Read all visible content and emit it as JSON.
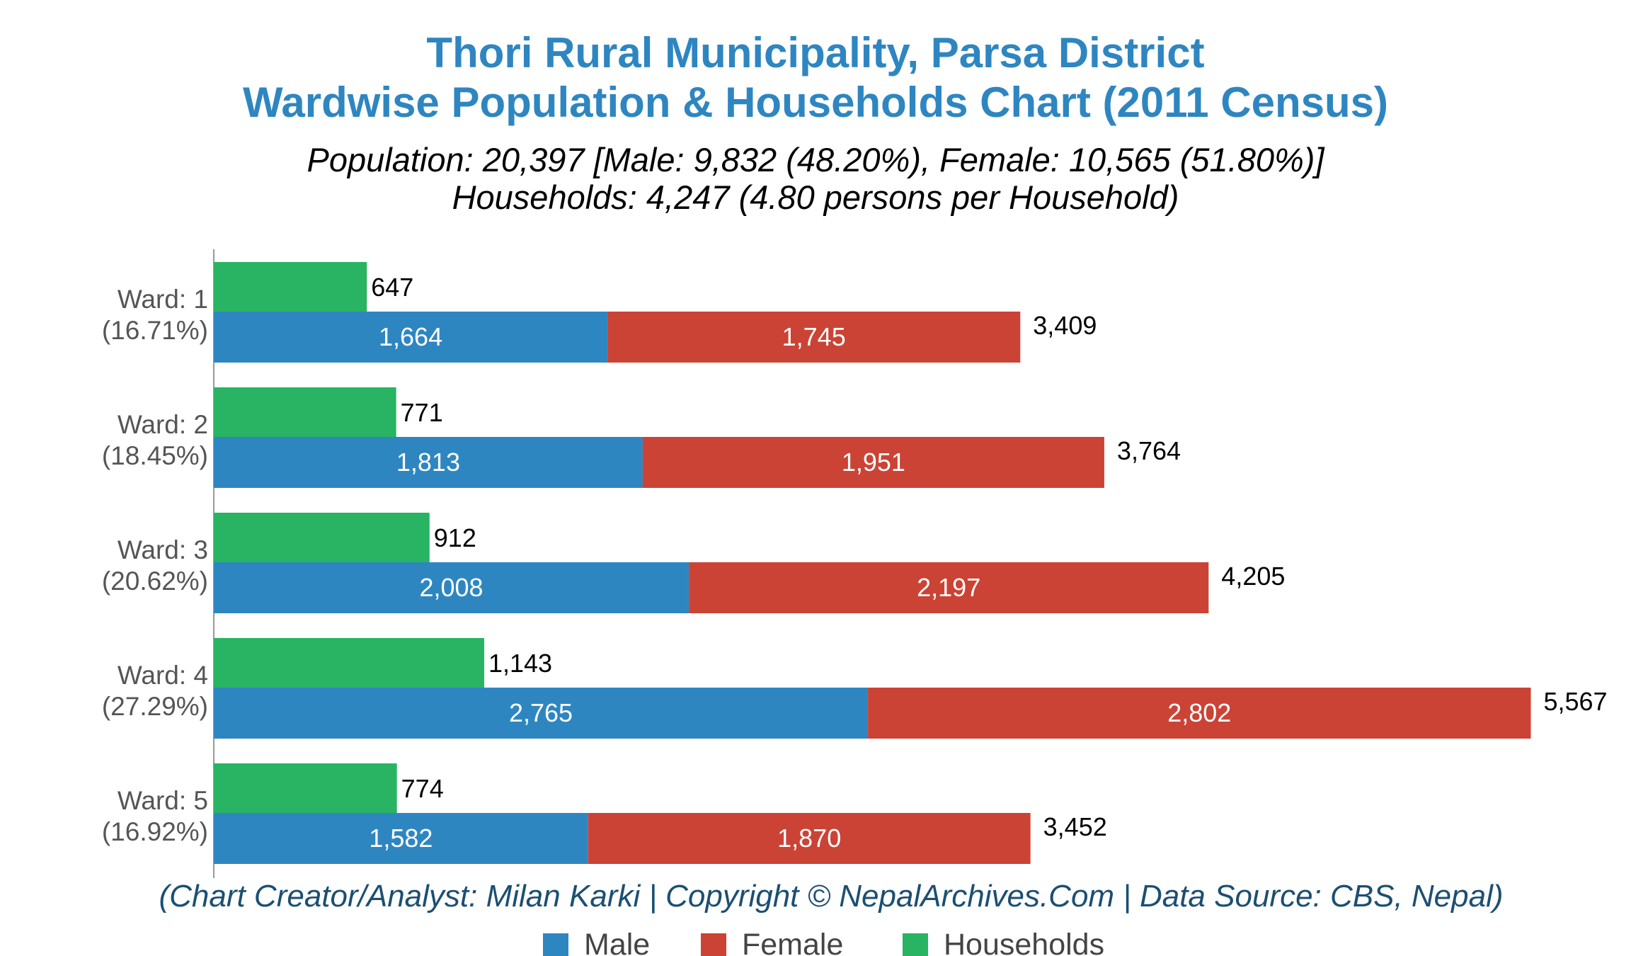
{
  "chart_data": {
    "type": "bar",
    "orientation": "horizontal",
    "title": [
      "Thori Rural Municipality, Parsa District",
      "Wardwise Population & Households Chart (2011 Census)"
    ],
    "subtitle": [
      "Population: 20,397 [Male: 9,832 (48.20%), Female: 10,565 (51.80%)]",
      "Households: 4,247 (4.80 persons per Household)"
    ],
    "categories": [
      {
        "name": "Ward: 1",
        "share": "(16.71%)"
      },
      {
        "name": "Ward: 2",
        "share": "(18.45%)"
      },
      {
        "name": "Ward: 3",
        "share": "(20.62%)"
      },
      {
        "name": "Ward: 4",
        "share": "(27.29%)"
      },
      {
        "name": "Ward: 5",
        "share": "(16.92%)"
      }
    ],
    "series": [
      {
        "name": "Male",
        "stack": "population",
        "color": "#2e86c1",
        "values": [
          1664,
          1813,
          2008,
          2765,
          1582
        ],
        "labels": [
          "1,664",
          "1,813",
          "2,008",
          "2,765",
          "1,582"
        ]
      },
      {
        "name": "Female",
        "stack": "population",
        "color": "#cb4335",
        "values": [
          1745,
          1951,
          2197,
          2802,
          1870
        ],
        "labels": [
          "1,745",
          "1,951",
          "2,197",
          "2,802",
          "1,870"
        ]
      },
      {
        "name": "Households",
        "stack": "households",
        "color": "#28b463",
        "values": [
          647,
          771,
          912,
          1143,
          774
        ],
        "labels": [
          "647",
          "771",
          "912",
          "1,143",
          "774"
        ]
      }
    ],
    "totals": {
      "values": [
        3409,
        3764,
        4205,
        5567,
        3452
      ],
      "labels": [
        "3,409",
        "3,764",
        "4,205",
        "5,567",
        "3,452"
      ]
    },
    "xlim": [
      0,
      5600
    ],
    "grid": false,
    "legend": {
      "position": "bottom",
      "items": [
        {
          "label": "Male",
          "color": "#2e86c1"
        },
        {
          "label": "Female",
          "color": "#cb4335"
        },
        {
          "label": "Households",
          "color": "#28b463"
        }
      ]
    },
    "colors": {
      "title": "#2e86c1",
      "footnote": "#1b4f72",
      "axis": "#999999"
    },
    "footnote": "(Chart Creator/Analyst: Milan Karki | Copyright © NepalArchives.Com | Data Source: CBS, Nepal)"
  }
}
